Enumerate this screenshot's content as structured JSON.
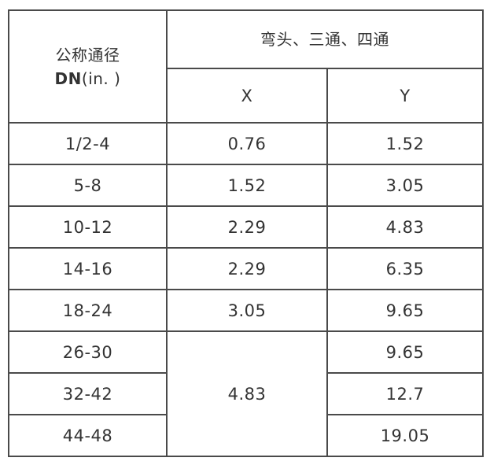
{
  "header": {
    "col1_line1": "公称通径",
    "col1_dn": "DN",
    "col1_unit": "(in. )",
    "group": "弯头、三通、四通",
    "x": "X",
    "y": "Y"
  },
  "rows": [
    {
      "dn": "1/2-4",
      "x": "0.76",
      "y": "1.52"
    },
    {
      "dn": "5-8",
      "x": "1.52",
      "y": "3.05"
    },
    {
      "dn": "10-12",
      "x": "2.29",
      "y": "4.83"
    },
    {
      "dn": "14-16",
      "x": "2.29",
      "y": "6.35"
    },
    {
      "dn": "18-24",
      "x": "3.05",
      "y": "9.65"
    },
    {
      "dn": "26-30",
      "x": "4.83",
      "y": "9.65"
    },
    {
      "dn": "32-42",
      "y": "12.7"
    },
    {
      "dn": "44-48",
      "y": "19.05"
    }
  ]
}
